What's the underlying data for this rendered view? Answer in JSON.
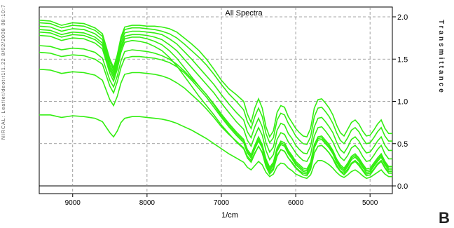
{
  "chart_data": {
    "type": "line",
    "title": "All Spectra",
    "xlabel": "1/cm",
    "ylabel": "Transmittance",
    "x_reversed": true,
    "xlim": [
      9450,
      4700
    ],
    "ylim": [
      0,
      20
    ],
    "y_ticks": [
      0,
      5,
      10,
      15,
      20
    ],
    "y_tick_labels": [
      "0.0",
      "0.5",
      "1.0",
      "1.5",
      "2.0"
    ],
    "x_ticks": [
      9000,
      8000,
      7000,
      6000,
      5000
    ],
    "x_tick_labels": [
      "9000",
      "8000",
      "7000",
      "6000",
      "5000"
    ],
    "grid": true,
    "line_color": "#33ee11",
    "x": [
      9450,
      9300,
      9150,
      9000,
      8850,
      8700,
      8600,
      8500,
      8450,
      8400,
      8350,
      8300,
      8200,
      8100,
      8000,
      7900,
      7800,
      7700,
      7600,
      7500,
      7400,
      7300,
      7200,
      7100,
      7000,
      6900,
      6800,
      6700,
      6650,
      6600,
      6550,
      6500,
      6450,
      6400,
      6350,
      6300,
      6250,
      6200,
      6150,
      6100,
      6050,
      6000,
      5950,
      5900,
      5850,
      5800,
      5750,
      5700,
      5650,
      5600,
      5550,
      5500,
      5450,
      5400,
      5350,
      5300,
      5250,
      5200,
      5150,
      5100,
      5050,
      5000,
      4950,
      4900,
      4850,
      4800,
      4750,
      4700
    ],
    "series": [
      {
        "values": [
          19.6,
          19.5,
          19.0,
          19.3,
          19.2,
          18.7,
          18.0,
          15.0,
          14.0,
          15.5,
          17.6,
          18.8,
          19.0,
          19.0,
          18.9,
          18.9,
          18.8,
          18.6,
          18.2,
          17.5,
          16.8,
          16.0,
          15.0,
          13.8,
          12.5,
          11.5,
          10.8,
          10.0,
          8.5,
          7.5,
          9.2,
          10.3,
          9.2,
          7.0,
          5.8,
          6.5,
          8.7,
          9.5,
          9.3,
          8.2,
          7.5,
          6.8,
          6.3,
          5.9,
          5.8,
          6.8,
          9.2,
          10.2,
          10.3,
          9.8,
          9.2,
          8.4,
          7.2,
          6.3,
          5.9,
          6.7,
          7.5,
          7.8,
          7.3,
          6.5,
          5.9,
          6.0,
          6.6,
          7.3,
          7.8,
          6.8,
          6.2,
          6.2
        ]
      },
      {
        "values": [
          19.3,
          19.2,
          18.7,
          19.0,
          18.9,
          18.4,
          17.7,
          14.7,
          13.7,
          15.2,
          17.3,
          18.5,
          18.7,
          18.7,
          18.6,
          18.5,
          18.3,
          18.0,
          17.5,
          16.8,
          16.0,
          15.2,
          14.3,
          13.2,
          12.0,
          10.9,
          10.0,
          9.0,
          7.6,
          6.8,
          8.2,
          9.2,
          8.2,
          6.2,
          5.1,
          5.7,
          7.8,
          8.6,
          8.4,
          7.4,
          6.7,
          5.9,
          5.4,
          5.0,
          4.9,
          5.8,
          8.2,
          9.2,
          9.3,
          8.8,
          8.2,
          7.4,
          6.3,
          5.4,
          5.0,
          5.7,
          6.6,
          6.9,
          6.4,
          5.6,
          5.0,
          5.1,
          5.7,
          6.4,
          6.9,
          5.9,
          5.3,
          5.3
        ]
      },
      {
        "values": [
          18.9,
          18.8,
          18.3,
          18.6,
          18.5,
          18.0,
          17.3,
          14.3,
          13.4,
          14.8,
          16.9,
          18.1,
          18.3,
          18.3,
          18.2,
          18.1,
          17.9,
          17.4,
          16.8,
          15.9,
          15.0,
          14.0,
          13.0,
          12.0,
          10.8,
          9.7,
          8.7,
          7.8,
          6.4,
          5.7,
          7.0,
          8.0,
          7.0,
          5.1,
          4.0,
          4.6,
          6.6,
          7.4,
          7.2,
          6.2,
          5.6,
          4.8,
          4.3,
          3.9,
          3.8,
          4.7,
          7.0,
          8.0,
          8.1,
          7.6,
          7.0,
          6.3,
          5.2,
          4.3,
          3.9,
          4.6,
          5.5,
          5.8,
          5.3,
          4.5,
          3.9,
          4.0,
          4.6,
          5.3,
          5.8,
          4.8,
          4.2,
          4.2
        ]
      },
      {
        "values": [
          18.5,
          18.4,
          17.9,
          18.2,
          18.1,
          17.6,
          16.9,
          14.0,
          13.1,
          14.5,
          16.5,
          17.7,
          17.9,
          17.9,
          17.8,
          17.6,
          17.3,
          16.7,
          16.0,
          15.0,
          14.0,
          13.0,
          12.0,
          11.0,
          9.8,
          8.7,
          7.6,
          6.7,
          5.4,
          4.7,
          5.9,
          6.9,
          6.0,
          4.2,
          3.1,
          3.7,
          5.5,
          6.3,
          6.1,
          5.2,
          4.6,
          3.9,
          3.4,
          3.0,
          2.9,
          3.7,
          5.9,
          6.9,
          7.0,
          6.5,
          5.9,
          5.2,
          4.2,
          3.4,
          3.0,
          3.6,
          4.5,
          4.8,
          4.3,
          3.5,
          2.9,
          3.0,
          3.6,
          4.3,
          4.8,
          3.8,
          3.2,
          3.2
        ]
      },
      {
        "values": [
          18.2,
          18.1,
          17.6,
          17.9,
          17.8,
          17.3,
          16.6,
          13.7,
          12.8,
          14.2,
          16.2,
          17.4,
          17.6,
          17.6,
          17.4,
          17.1,
          16.7,
          16.0,
          15.1,
          14.0,
          12.9,
          11.8,
          10.8,
          9.7,
          8.5,
          7.4,
          6.4,
          5.5,
          4.3,
          3.7,
          4.8,
          5.8,
          4.9,
          3.2,
          2.2,
          2.8,
          4.5,
          5.3,
          5.1,
          4.2,
          3.6,
          2.9,
          2.5,
          2.1,
          2.0,
          2.8,
          4.9,
          5.8,
          5.9,
          5.4,
          4.9,
          4.2,
          3.2,
          2.5,
          2.1,
          2.7,
          3.5,
          3.8,
          3.3,
          2.6,
          2.0,
          2.1,
          2.7,
          3.3,
          3.8,
          2.9,
          2.3,
          2.3
        ]
      },
      {
        "values": [
          17.8,
          17.7,
          17.2,
          17.5,
          17.4,
          16.9,
          16.2,
          13.3,
          12.4,
          13.8,
          15.8,
          17.0,
          17.2,
          17.1,
          16.9,
          16.5,
          16.0,
          15.2,
          14.2,
          13.0,
          11.8,
          10.6,
          9.5,
          8.4,
          7.2,
          6.2,
          5.2,
          4.4,
          3.3,
          2.8,
          3.8,
          4.7,
          3.9,
          2.3,
          1.4,
          1.9,
          3.5,
          4.3,
          4.1,
          3.3,
          2.7,
          2.1,
          1.7,
          1.3,
          1.2,
          1.9,
          3.9,
          4.7,
          4.8,
          4.4,
          3.9,
          3.2,
          2.3,
          1.7,
          1.3,
          1.8,
          2.6,
          2.9,
          2.4,
          1.8,
          1.2,
          1.3,
          1.9,
          2.5,
          2.9,
          2.1,
          1.5,
          1.5
        ]
      },
      {
        "values": [
          16.6,
          16.5,
          16.1,
          16.3,
          16.2,
          15.8,
          15.1,
          12.5,
          11.7,
          13.0,
          14.8,
          15.9,
          16.1,
          16.0,
          15.9,
          15.7,
          15.4,
          15.0,
          14.4,
          13.6,
          12.7,
          11.8,
          10.8,
          9.6,
          8.3,
          7.2,
          6.2,
          5.3,
          4.1,
          3.5,
          4.6,
          5.5,
          4.7,
          3.0,
          2.0,
          2.6,
          4.3,
          5.1,
          4.9,
          4.0,
          3.4,
          2.7,
          2.3,
          1.9,
          1.8,
          2.6,
          4.7,
          5.6,
          5.7,
          5.2,
          4.7,
          4.0,
          3.0,
          2.3,
          1.9,
          2.5,
          3.3,
          3.6,
          3.1,
          2.4,
          1.8,
          1.9,
          2.5,
          3.1,
          3.6,
          2.7,
          2.1,
          2.1
        ]
      },
      {
        "values": [
          15.8,
          15.7,
          15.3,
          15.5,
          15.4,
          15.0,
          14.4,
          11.8,
          11.0,
          12.3,
          14.0,
          15.1,
          15.3,
          15.3,
          15.2,
          15.1,
          14.9,
          14.6,
          14.1,
          13.4,
          12.5,
          11.5,
          10.5,
          9.3,
          8.1,
          7.0,
          6.0,
          5.1,
          3.9,
          3.3,
          4.4,
          5.3,
          4.5,
          2.8,
          1.8,
          2.4,
          4.1,
          4.9,
          4.7,
          3.8,
          3.2,
          2.5,
          2.1,
          1.7,
          1.6,
          2.4,
          4.5,
          5.4,
          5.5,
          5.0,
          4.5,
          3.8,
          2.8,
          2.1,
          1.7,
          2.3,
          3.1,
          3.4,
          2.9,
          2.2,
          1.6,
          1.7,
          2.3,
          2.9,
          3.4,
          2.5,
          1.9,
          1.9
        ]
      },
      {
        "values": [
          13.8,
          13.7,
          13.3,
          13.5,
          13.4,
          13.1,
          12.5,
          10.2,
          9.5,
          10.6,
          12.2,
          13.2,
          13.4,
          13.4,
          13.3,
          13.2,
          13.0,
          12.7,
          12.2,
          11.6,
          10.8,
          10.0,
          9.1,
          8.1,
          7.0,
          6.1,
          5.3,
          4.5,
          3.5,
          3.0,
          3.9,
          4.7,
          4.0,
          2.5,
          1.6,
          2.1,
          3.6,
          4.3,
          4.1,
          3.3,
          2.8,
          2.2,
          1.8,
          1.5,
          1.4,
          2.1,
          3.9,
          4.7,
          4.8,
          4.4,
          3.9,
          3.3,
          2.5,
          1.8,
          1.5,
          2.0,
          2.7,
          3.0,
          2.6,
          1.9,
          1.4,
          1.5,
          2.0,
          2.6,
          3.0,
          2.2,
          1.7,
          1.7
        ]
      },
      {
        "values": [
          8.4,
          8.4,
          8.1,
          8.3,
          8.2,
          8.0,
          7.6,
          6.3,
          5.8,
          6.5,
          7.5,
          8.0,
          8.2,
          8.2,
          8.1,
          8.0,
          7.9,
          7.7,
          7.4,
          7.0,
          6.6,
          6.1,
          5.6,
          5.0,
          4.4,
          3.8,
          3.3,
          2.8,
          2.2,
          1.9,
          2.4,
          2.9,
          2.5,
          1.6,
          1.1,
          1.4,
          2.3,
          2.7,
          2.6,
          2.1,
          1.8,
          1.4,
          1.2,
          1.0,
          0.9,
          1.3,
          2.5,
          3.0,
          3.0,
          2.8,
          2.5,
          2.1,
          1.6,
          1.2,
          1.0,
          1.3,
          1.7,
          1.9,
          1.6,
          1.2,
          0.9,
          1.0,
          1.3,
          1.6,
          1.9,
          1.4,
          1.1,
          1.1
        ]
      }
    ]
  },
  "left_meta": "NIRCAL: Leaflet/deotit1l1.22  8/02/2008 08:10:7",
  "panel_letter": "B"
}
